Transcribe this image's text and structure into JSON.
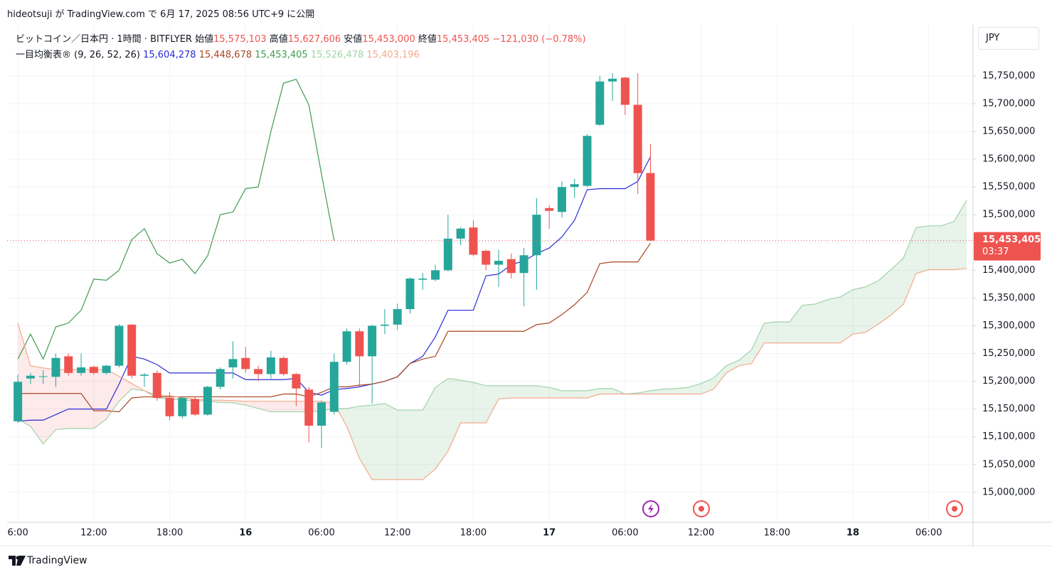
{
  "header": {
    "publish": "hideotsuji が TradingView.com で 6月 17, 2025 08:56 UTC+9 に公開"
  },
  "footer": {
    "brand": "TradingView"
  },
  "chart_data": {
    "type": "candlestick",
    "symbol": "ビットコイン／日本円 · 1時間 · BITFLYER",
    "ohlc_legend": [
      {
        "name": "始値",
        "value": 15575103,
        "value_label": "15,575,103"
      },
      {
        "name": "高値",
        "value": 15627606,
        "value_label": "15,627,606"
      },
      {
        "name": "安値",
        "value": 15453000,
        "value_label": "15,453,000"
      },
      {
        "name": "終値",
        "value": 15453405,
        "value_label": "15,453,405"
      }
    ],
    "change_label": "−121,030 (−0.78%)",
    "indicator": "一目均衡表® (9, 26, 52, 26)",
    "currency": "JPY",
    "last_price": {
      "value": 15453405,
      "label": "15,453,405",
      "countdown": "03:37"
    },
    "grid": true,
    "up_color": "#26a69a",
    "down_color": "#ef5350",
    "xlim": [
      -0.85,
      75.5
    ],
    "xticks": [
      {
        "value": 0,
        "label": "6:00"
      },
      {
        "value": 6,
        "label": "12:00"
      },
      {
        "value": 12,
        "label": "18:00"
      },
      {
        "value": 18,
        "label": "16"
      },
      {
        "value": 24,
        "label": "06:00"
      },
      {
        "value": 30,
        "label": "12:00"
      },
      {
        "value": 36,
        "label": "18:00"
      },
      {
        "value": 42,
        "label": "17"
      },
      {
        "value": 48,
        "label": "06:00"
      },
      {
        "value": 54,
        "label": "12:00"
      },
      {
        "value": 60,
        "label": "18:00"
      },
      {
        "value": 66,
        "label": "18"
      },
      {
        "value": 72,
        "label": "06:00"
      }
    ],
    "ylim": [
      14946000,
      15842000
    ],
    "yticks": [
      {
        "value": 15000000,
        "label": "15,000,000"
      },
      {
        "value": 15050000,
        "label": "15,050,000"
      },
      {
        "value": 15100000,
        "label": "15,100,000"
      },
      {
        "value": 15150000,
        "label": "15,150,000"
      },
      {
        "value": 15200000,
        "label": "15,200,000"
      },
      {
        "value": 15250000,
        "label": "15,250,000"
      },
      {
        "value": 15300000,
        "label": "15,300,000"
      },
      {
        "value": 15350000,
        "label": "15,350,000"
      },
      {
        "value": 15400000,
        "label": "15,400,000"
      },
      {
        "value": 15450000,
        "label": "15,450,000"
      },
      {
        "value": 15500000,
        "label": "15,500,000"
      },
      {
        "value": 15550000,
        "label": "15,550,000"
      },
      {
        "value": 15600000,
        "label": "15,600,000"
      },
      {
        "value": 15650000,
        "label": "15,650,000"
      },
      {
        "value": 15700000,
        "label": "15,700,000"
      },
      {
        "value": 15750000,
        "label": "15,750,000"
      }
    ],
    "x": [
      0,
      1,
      2,
      3,
      4,
      5,
      6,
      7,
      8,
      9,
      10,
      11,
      12,
      13,
      14,
      15,
      16,
      17,
      18,
      19,
      20,
      21,
      22,
      23,
      24,
      25,
      26,
      27,
      28,
      29,
      30,
      31,
      32,
      33,
      34,
      35,
      36,
      37,
      38,
      39,
      40,
      41,
      42,
      43,
      44,
      45,
      46,
      47,
      48,
      49,
      50,
      51,
      52,
      53,
      54,
      55,
      56,
      57,
      58,
      59,
      60,
      61,
      62,
      63,
      64,
      65,
      66,
      67,
      68,
      69,
      70,
      71,
      72,
      73,
      74,
      75
    ],
    "open": [
      15128000,
      15205000,
      15208000,
      15208000,
      15245000,
      15215000,
      15226000,
      15215000,
      15228000,
      15302000,
      15210000,
      15215000,
      15170000,
      15137000,
      15168000,
      15140000,
      15190000,
      15225000,
      15242000,
      15222000,
      15213000,
      15242000,
      15213000,
      15185000,
      15120000,
      15145000,
      15235000,
      15290000,
      15245000,
      15300000,
      15302000,
      15330000,
      15383000,
      15383000,
      15400000,
      15457000,
      15477000,
      15435000,
      15410000,
      15420000,
      15395000,
      15427000,
      15512000,
      15505000,
      15550000,
      15552000,
      15662000,
      15740000,
      15747000,
      15698000,
      15575103,
      null,
      null,
      null,
      null,
      null,
      null,
      null,
      null,
      null,
      null,
      null,
      null,
      null,
      null,
      null,
      null,
      null,
      null,
      null,
      null,
      null,
      null,
      null,
      null,
      null
    ],
    "high": [
      15212000,
      15215000,
      15220000,
      15250000,
      15250000,
      15250000,
      15228000,
      15230000,
      15303000,
      15303000,
      15215000,
      15220000,
      15180000,
      15172000,
      15172000,
      15192000,
      15225000,
      15272000,
      15262000,
      15228000,
      15255000,
      15245000,
      15215000,
      15190000,
      15165000,
      15250000,
      15295000,
      15295000,
      15302000,
      15330000,
      15340000,
      15387000,
      15395000,
      15410000,
      15500000,
      15478000,
      15490000,
      15437000,
      15437000,
      15430000,
      15440000,
      15530000,
      15517000,
      15560000,
      15565000,
      15645000,
      15750000,
      15755000,
      15748000,
      15755000,
      15627606,
      null,
      null,
      null,
      null,
      null,
      null,
      null,
      null,
      null,
      null,
      null,
      null,
      null,
      null,
      null,
      null,
      null,
      null,
      null,
      null,
      null,
      null,
      null,
      null,
      null
    ],
    "low": [
      15125000,
      15195000,
      15195000,
      15190000,
      15210000,
      15210000,
      15212000,
      15212000,
      15225000,
      15205000,
      15190000,
      15165000,
      15130000,
      15133000,
      15137000,
      15138000,
      15185000,
      15205000,
      15215000,
      15200000,
      15205000,
      15210000,
      15155000,
      15090000,
      15080000,
      15140000,
      15230000,
      15190000,
      15160000,
      15285000,
      15292000,
      15322000,
      15365000,
      15380000,
      15398000,
      15445000,
      15425000,
      15400000,
      15370000,
      15385000,
      15335000,
      15365000,
      15475000,
      15495000,
      15530000,
      15550000,
      15660000,
      15705000,
      15680000,
      15537000,
      15453000,
      null,
      null,
      null,
      null,
      null,
      null,
      null,
      null,
      null,
      null,
      null,
      null,
      null,
      null,
      null,
      null,
      null,
      null,
      null,
      null,
      null,
      null,
      null,
      null,
      null
    ],
    "close": [
      15199000,
      15210000,
      15209000,
      15242000,
      15215000,
      15225000,
      15215000,
      15228000,
      15300000,
      15210000,
      15212000,
      15170000,
      15137000,
      15170000,
      15140000,
      15190000,
      15222000,
      15240000,
      15222000,
      15213000,
      15243000,
      15213000,
      15187000,
      15120000,
      15162000,
      15235000,
      15290000,
      15245000,
      15300000,
      15302000,
      15330000,
      15385000,
      15385000,
      15400000,
      15457000,
      15475000,
      15428000,
      15410000,
      15417000,
      15395000,
      15427000,
      15500000,
      15507000,
      15550000,
      15555000,
      15642000,
      15740000,
      15745000,
      15698000,
      15575000,
      15453405,
      null,
      null,
      null,
      null,
      null,
      null,
      null,
      null,
      null,
      null,
      null,
      null,
      null,
      null,
      null,
      null,
      null,
      null,
      null,
      null,
      null,
      null,
      null,
      null,
      null
    ],
    "series": [
      {
        "color": "#2b2bd8",
        "value_label": "15,604,278",
        "values": [
          15128000,
          15130000,
          15130000,
          15140000,
          15150000,
          15150000,
          15150000,
          15150000,
          15195000,
          15245000,
          15240000,
          15230000,
          15215000,
          15215000,
          15215000,
          15215000,
          15215000,
          15215000,
          15203000,
          15203000,
          15203000,
          15203000,
          15205000,
          15180000,
          15175000,
          15185000,
          15187000,
          15190000,
          15195000,
          15200000,
          15208000,
          15232000,
          15245000,
          15280000,
          15328000,
          15328000,
          15328000,
          15390000,
          15393000,
          15410000,
          15417000,
          15430000,
          15440000,
          15460000,
          15490000,
          15545000,
          15547000,
          15547000,
          15547000,
          15560000,
          15604278,
          null,
          null,
          null,
          null,
          null,
          null,
          null,
          null,
          null,
          null,
          null,
          null,
          null,
          null,
          null,
          null,
          null,
          null,
          null,
          null,
          null,
          null,
          null,
          null,
          null
        ]
      },
      {
        "color": "#a8461f",
        "value_label": "15,448,678",
        "values": [
          15178000,
          15178000,
          15178000,
          15178000,
          15178000,
          15178000,
          15147000,
          15147000,
          15145000,
          15170000,
          15172000,
          15172000,
          15172000,
          15172000,
          15172000,
          15172000,
          15172000,
          15172000,
          15172000,
          15172000,
          15172000,
          15177000,
          15177000,
          15172000,
          15180000,
          15190000,
          15190000,
          15193000,
          15195000,
          15200000,
          15208000,
          15232000,
          15240000,
          15245000,
          15290000,
          15290000,
          15290000,
          15290000,
          15290000,
          15290000,
          15290000,
          15302000,
          15305000,
          15320000,
          15338000,
          15360000,
          15412000,
          15415000,
          15415000,
          15415000,
          15448678,
          null,
          null,
          null,
          null,
          null,
          null,
          null,
          null,
          null,
          null,
          null,
          null,
          null,
          null,
          null,
          null,
          null,
          null,
          null,
          null,
          null,
          null,
          null,
          null,
          null
        ]
      },
      {
        "color": "#3f9b4f",
        "value_label": "15,453,405",
        "values": [
          15240000,
          15285000,
          15240000,
          15298000,
          15305000,
          15328000,
          15384000,
          15382000,
          15400000,
          15455000,
          15475000,
          15430000,
          15413000,
          15420000,
          15394000,
          15426000,
          15500000,
          15505000,
          15547000,
          15550000,
          15650000,
          15737000,
          15744000,
          15698000,
          15573000,
          15453405,
          null,
          null,
          null,
          null,
          null,
          null,
          null,
          null,
          null,
          null,
          null,
          null,
          null,
          null,
          null,
          null,
          null,
          null,
          null,
          null,
          null,
          null,
          null,
          null,
          null,
          null,
          null,
          null,
          null,
          null,
          null,
          null,
          null,
          null,
          null,
          null,
          null,
          null,
          null,
          null,
          null,
          null,
          null,
          null,
          null,
          null,
          null,
          null,
          null,
          null
        ]
      },
      {
        "color": "#9fd4a8",
        "value_label": "15,526,478",
        "values": [
          15132000,
          15119000,
          15087000,
          15113000,
          15115000,
          15115000,
          15115000,
          15132000,
          15164000,
          15186000,
          15183000,
          15170000,
          15168000,
          15166000,
          15165000,
          15164000,
          15162000,
          15161000,
          15157000,
          15151000,
          15145000,
          15145000,
          15145000,
          15145000,
          15147000,
          15151000,
          15151000,
          15155000,
          15157000,
          15160000,
          15148000,
          15148000,
          15148000,
          15189000,
          15205000,
          15202000,
          15198000,
          15192000,
          15192000,
          15192000,
          15192000,
          15192000,
          15189000,
          15183000,
          15183000,
          15183000,
          15187000,
          15187000,
          15177000,
          15179000,
          15183000,
          15186000,
          15187000,
          15189000,
          15196000,
          15206000,
          15228000,
          15238000,
          15257000,
          15305000,
          15307000,
          15307000,
          15337000,
          15339000,
          15347000,
          15352000,
          15365000,
          15370000,
          15381000,
          15401000,
          15422000,
          15477000,
          15480000,
          15480000,
          15488000,
          15526478
        ]
      },
      {
        "color": "#f3aa8c",
        "value_label": "15,403,196",
        "values": [
          15305000,
          15228000,
          15224000,
          15221000,
          15221000,
          15221000,
          15221000,
          15221000,
          15209000,
          15196000,
          15183000,
          15174000,
          15174000,
          15170000,
          15168000,
          15166000,
          15166000,
          15165000,
          15164000,
          15164000,
          15164000,
          15164000,
          15164000,
          15164000,
          15164000,
          15160000,
          15119000,
          15061000,
          15023000,
          15023000,
          15023000,
          15023000,
          15023000,
          15042000,
          15074000,
          15125000,
          15125000,
          15125000,
          15168000,
          15170000,
          15170000,
          15170000,
          15170000,
          15170000,
          15170000,
          15170000,
          15177000,
          15177000,
          15177000,
          15177000,
          15177000,
          15177000,
          15177000,
          15177000,
          15177000,
          15186000,
          15215000,
          15228000,
          15232000,
          15269000,
          15269000,
          15269000,
          15269000,
          15269000,
          15269000,
          15269000,
          15285000,
          15288000,
          15303000,
          15319000,
          15339000,
          15394000,
          15401000,
          15401000,
          15401000,
          15403196
        ]
      }
    ],
    "cloud": {
      "between": [
        3,
        4
      ],
      "up_color": "rgba(67,160,71,0.12)",
      "down_color": "rgba(239,83,80,0.12)"
    }
  }
}
